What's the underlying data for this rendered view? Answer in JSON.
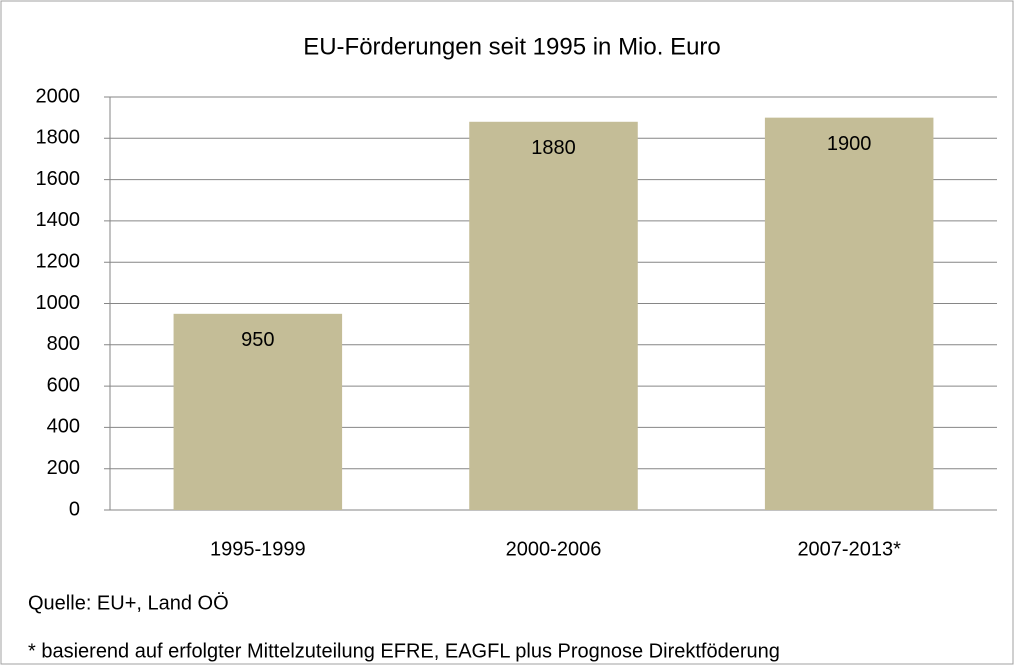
{
  "chart_data": {
    "type": "bar",
    "title": "EU-Förderungen seit 1995 in Mio. Euro",
    "categories": [
      "1995-1999",
      "2000-2006",
      "2007-2013*"
    ],
    "values": [
      950,
      1880,
      1900
    ],
    "color": "#c4bd97",
    "ylim": [
      0,
      2000
    ],
    "yticks": [
      0,
      200,
      400,
      600,
      800,
      1000,
      1200,
      1400,
      1600,
      1800,
      2000
    ],
    "grid": true,
    "source": "Quelle: EU+, Land OÖ",
    "footnote": "* basierend auf erfolgter Mittelzuteilung EFRE, EAGFL plus Prognose Direktföderung"
  }
}
